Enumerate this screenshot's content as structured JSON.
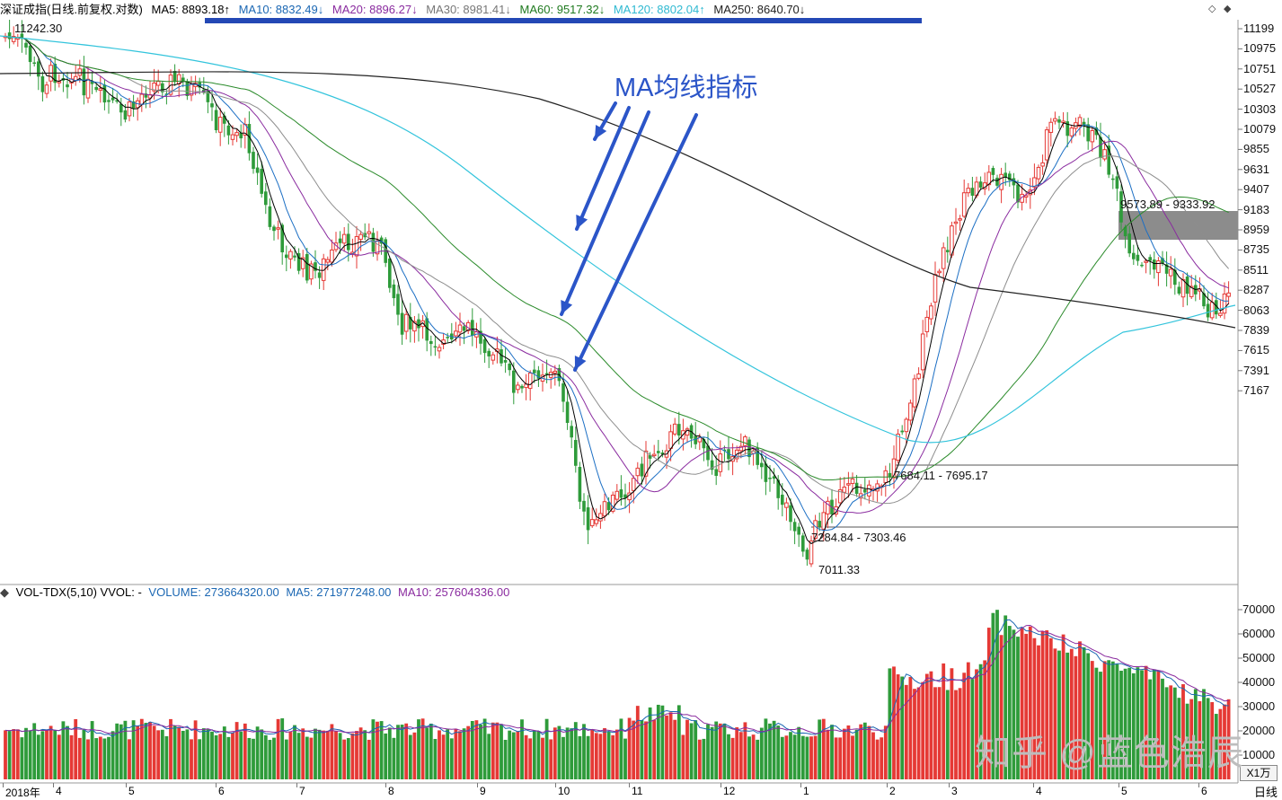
{
  "header": {
    "title": "深证成指(日线.前复权.对数)",
    "ma5": "MA5: 8893.18↑",
    "ma10": "MA10: 8832.49↓",
    "ma20": "MA20: 8896.27↓",
    "ma30": "MA30: 8981.41↓",
    "ma60": "MA60: 9517.32↓",
    "ma120": "MA120: 8802.04↑",
    "ma250": "MA250: 8640.70↓",
    "ctrl_left": "◇",
    "ctrl_right": "◆"
  },
  "colors": {
    "up": "#e53935",
    "down": "#2e9b3a",
    "ma5": "#000000",
    "ma10": "#1c6fc4",
    "ma20": "#8a2b9f",
    "ma30": "#8d8d8d",
    "ma60": "#2b8b2b",
    "ma120": "#33c4dc",
    "ma250": "#222222",
    "header_ma5": "#000000",
    "header_ma10": "#1b67b3",
    "header_ma20": "#8a2b9f",
    "header_ma30": "#777777",
    "header_ma60": "#1f7a1f",
    "header_ma120": "#2fb9d1",
    "header_ma250": "#222222"
  },
  "price_axis": [
    "11199",
    "10975",
    "10751",
    "10527",
    "10303",
    "10079",
    "9855",
    "9631",
    "9407",
    "9183",
    "8959",
    "8735",
    "8511",
    "8287",
    "8063",
    "7839",
    "7615",
    "7391",
    "7167"
  ],
  "price_labels": {
    "high": "11242.30",
    "low": "7011.33",
    "gap1": "7684.11 - 7695.17",
    "gap2": "7284.84 - 7303.46",
    "gap3": "9573.89 - 9333.92"
  },
  "annotation": "MA均线指标",
  "volume": {
    "title": "VOL-TDX(5,10) VVOL: -",
    "volume": "VOLUME: 273664320.00",
    "ma5": "MA5: 271977248.00",
    "ma10": "MA10: 257604336.00",
    "axis": [
      "70000",
      "60000",
      "50000",
      "40000",
      "30000",
      "20000",
      "10000"
    ],
    "unit": "X1万"
  },
  "xaxis": {
    "labels": [
      "2018年",
      "4",
      "5",
      "6",
      "7",
      "8",
      "9",
      "10",
      "11",
      "12",
      "1",
      "2",
      "3",
      "4",
      "5",
      "6"
    ],
    "period": "日线"
  },
  "watermark": "知乎 @蓝色浩辰"
}
